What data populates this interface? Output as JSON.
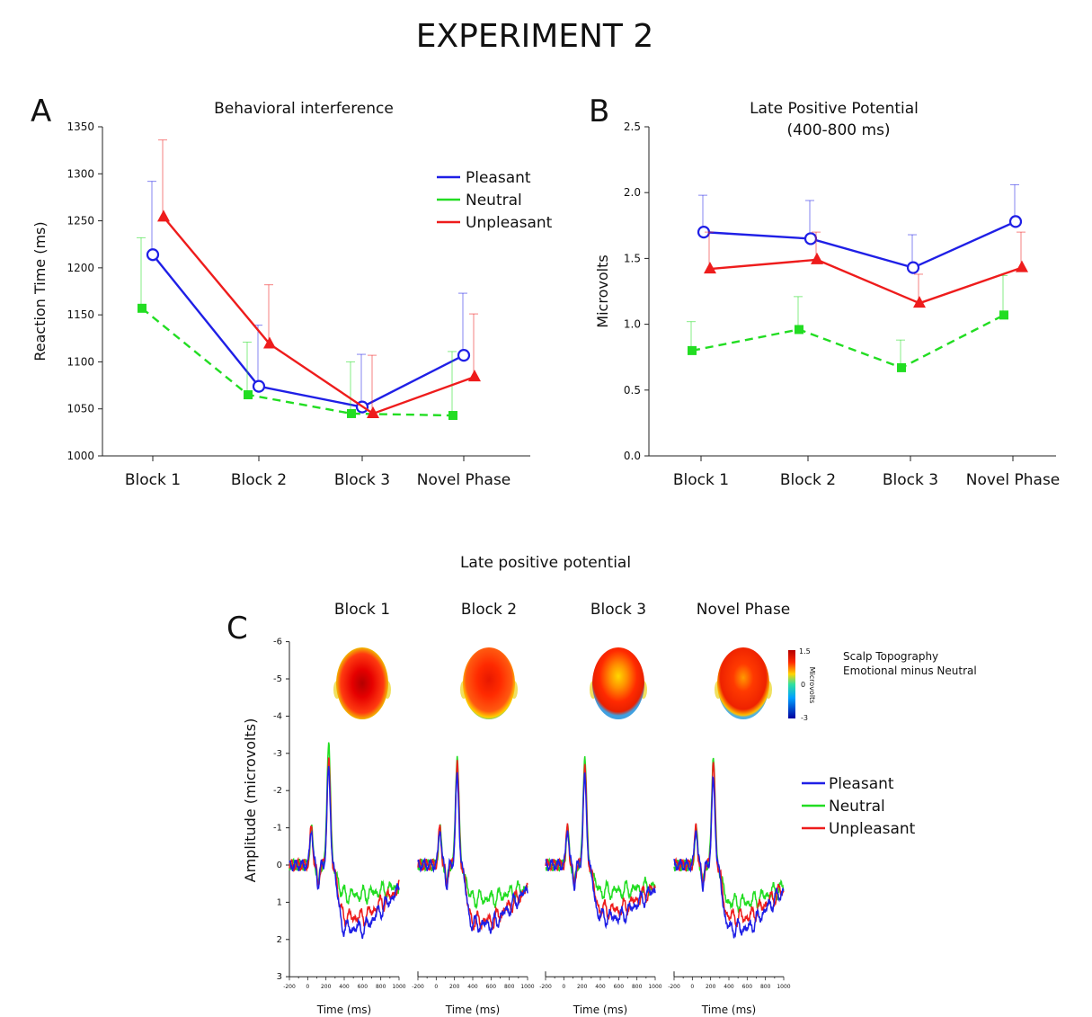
{
  "figure": {
    "title": "EXPERIMENT 2",
    "colors": {
      "pleasant": "#1f1fe6",
      "neutral": "#22dd22",
      "unpleasant": "#ee1c1c"
    }
  },
  "panel_a": {
    "letter": "A"
  },
  "panel_b": {
    "letter": "B"
  },
  "panel_c": {
    "letter": "C"
  },
  "chart_data": [
    {
      "type": "line",
      "panel": "A",
      "title": "Behavioral interference",
      "xlabel": "",
      "ylabel": "Reaction Time (ms)",
      "categories": [
        "Block 1",
        "Block 2",
        "Block 3",
        "Novel Phase"
      ],
      "ylim": [
        1000,
        1350
      ],
      "yticks": [
        1000,
        1050,
        1100,
        1150,
        1200,
        1250,
        1300,
        1350
      ],
      "legend": "top-right",
      "series": [
        {
          "name": "Pleasant",
          "color": "#1f1fe6",
          "marker": "open-circle",
          "dash": false,
          "values": [
            1214,
            1074,
            1052,
            1107
          ],
          "errors": [
            78,
            65,
            56,
            66
          ]
        },
        {
          "name": "Neutral",
          "color": "#22dd22",
          "marker": "square",
          "dash": true,
          "values": [
            1157,
            1065,
            1045,
            1043
          ],
          "errors": [
            75,
            56,
            55,
            68
          ]
        },
        {
          "name": "Unpleasant",
          "color": "#ee1c1c",
          "marker": "triangle",
          "dash": false,
          "values": [
            1254,
            1119,
            1045,
            1084
          ],
          "errors": [
            82,
            63,
            62,
            67
          ]
        }
      ]
    },
    {
      "type": "line",
      "panel": "B",
      "title": "Late Positive Potential",
      "subtitle": "(400-800 ms)",
      "xlabel": "",
      "ylabel": "Microvolts",
      "categories": [
        "Block 1",
        "Block 2",
        "Block 3",
        "Novel Phase"
      ],
      "ylim": [
        0.0,
        2.5
      ],
      "yticks": [
        "0.0",
        "0.5",
        "1.0",
        "1.5",
        "2.0",
        "2.5"
      ],
      "series": [
        {
          "name": "Pleasant",
          "color": "#1f1fe6",
          "marker": "open-circle",
          "dash": false,
          "values": [
            1.7,
            1.65,
            1.43,
            1.78
          ],
          "errors": [
            0.28,
            0.29,
            0.25,
            0.28
          ]
        },
        {
          "name": "Neutral",
          "color": "#22dd22",
          "marker": "square",
          "dash": true,
          "values": [
            0.8,
            0.96,
            0.67,
            1.07
          ],
          "errors": [
            0.22,
            0.25,
            0.21,
            0.3
          ]
        },
        {
          "name": "Unpleasant",
          "color": "#ee1c1c",
          "marker": "triangle",
          "dash": false,
          "values": [
            1.42,
            1.49,
            1.16,
            1.43
          ],
          "errors": [
            0.28,
            0.21,
            0.22,
            0.27
          ]
        }
      ]
    },
    {
      "type": "line",
      "panel": "C",
      "title": "Late positive potential",
      "xlabel": "Time (ms)",
      "ylabel": "Amplitude (microvolts)",
      "y_inverted": true,
      "ylim": [
        3,
        -6
      ],
      "yticks": [
        "-6",
        "-5",
        "-4",
        "-3",
        "-2",
        "-1",
        "0",
        "1",
        "2",
        "3"
      ],
      "xlim": [
        -200,
        1000
      ],
      "xticks": [
        "-200",
        "0",
        "200",
        "400",
        "600",
        "800",
        "1000"
      ],
      "topography_label_1": "Scalp Topography",
      "topography_label_2": "Emotional minus Neutral",
      "colorbar_label": "Microvolts",
      "colorbar_ticks": [
        "1.5",
        "0",
        "-3"
      ],
      "legend": [
        "Pleasant",
        "Neutral",
        "Unpleasant"
      ],
      "subplots": [
        {
          "label": "Block 1",
          "late": {
            "Pleasant": 1.7,
            "Neutral": 0.8,
            "Unpleasant": 1.4
          },
          "peak": {
            "Pleasant": -2.6,
            "Neutral": -3.4,
            "Unpleasant": -2.8
          }
        },
        {
          "label": "Block 2",
          "late": {
            "Pleasant": 1.6,
            "Neutral": 0.9,
            "Unpleasant": 1.5
          },
          "peak": {
            "Pleasant": -2.4,
            "Neutral": -3.0,
            "Unpleasant": -2.7
          }
        },
        {
          "label": "Block 3",
          "late": {
            "Pleasant": 1.4,
            "Neutral": 0.7,
            "Unpleasant": 1.2
          },
          "peak": {
            "Pleasant": -2.4,
            "Neutral": -3.0,
            "Unpleasant": -2.6
          }
        },
        {
          "label": "Novel Phase",
          "late": {
            "Pleasant": 1.7,
            "Neutral": 1.0,
            "Unpleasant": 1.4
          },
          "peak": {
            "Pleasant": -2.3,
            "Neutral": -3.0,
            "Unpleasant": -2.7
          }
        }
      ]
    }
  ]
}
